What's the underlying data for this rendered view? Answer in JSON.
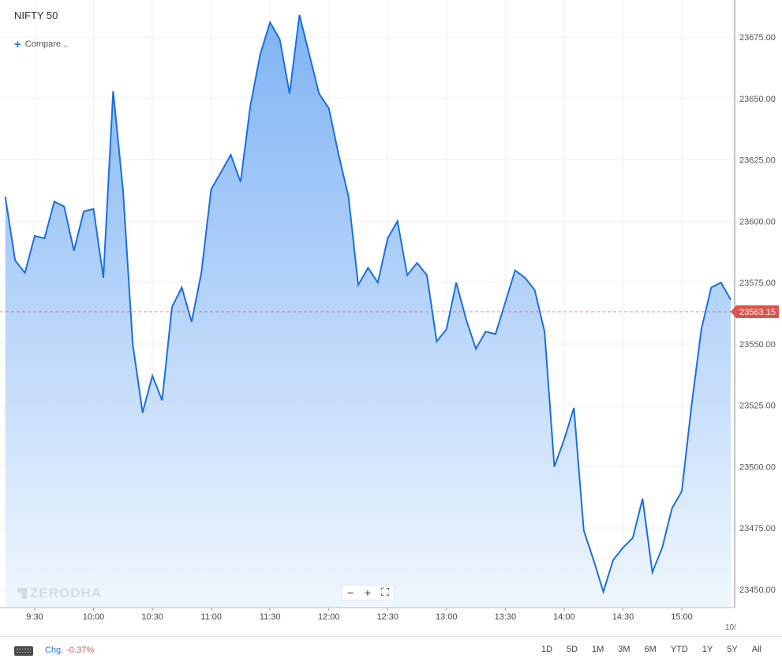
{
  "header": {
    "title": "NIFTY 50",
    "compare_label": "Compare..."
  },
  "watermark": "ZERODHA",
  "zoom": {
    "minus": "−",
    "plus": "+",
    "fullscreen": "⛶"
  },
  "footer": {
    "chg_label": "Chg.",
    "chg_value": "-0.37%",
    "ranges": [
      "1D",
      "5D",
      "1M",
      "3M",
      "6M",
      "YTD",
      "1Y",
      "5Y",
      "All"
    ]
  },
  "colors": {
    "line": "#1a6fe0",
    "fill_top": "#7fb3f5",
    "fill_bottom": "#f0f7fe",
    "current_badge": "#e0524b"
  },
  "chart_data": {
    "type": "area",
    "title": "NIFTY 50",
    "xlabel": "",
    "ylabel": "",
    "xlim": [
      "09:15",
      "15:30"
    ],
    "ylim": [
      23440,
      23690
    ],
    "y_ticks": [
      23450,
      23475,
      23500,
      23525,
      23550,
      23575,
      23600,
      23625,
      23650,
      23675
    ],
    "y_tick_labels": [
      "23450.00",
      "23475.00",
      "23500.00",
      "23525.00",
      "23550.00",
      "23575.00",
      "23600.00",
      "23625.00",
      "23650.00",
      "23675.00"
    ],
    "x_ticks": [
      "9:30",
      "10:00",
      "10:30",
      "11:00",
      "11:30",
      "12:00",
      "12:30",
      "13:00",
      "13:30",
      "14:00",
      "14:30",
      "15:00"
    ],
    "x_edge_label": "10/",
    "current_value": 23563.15,
    "current_label": "23563.15",
    "grid": true,
    "series": [
      {
        "x": [
          "09:15",
          "09:20",
          "09:25",
          "09:30",
          "09:35",
          "09:40",
          "09:45",
          "09:50",
          "09:55",
          "10:00",
          "10:05",
          "10:10",
          "10:15",
          "10:20",
          "10:25",
          "10:30",
          "10:35",
          "10:40",
          "10:45",
          "10:50",
          "10:55",
          "11:00",
          "11:05",
          "11:10",
          "11:15",
          "11:20",
          "11:25",
          "11:30",
          "11:35",
          "11:40",
          "11:45",
          "11:50",
          "11:55",
          "12:00",
          "12:05",
          "12:10",
          "12:15",
          "12:20",
          "12:25",
          "12:30",
          "12:35",
          "12:40",
          "12:45",
          "12:50",
          "12:55",
          "13:00",
          "13:05",
          "13:10",
          "13:15",
          "13:20",
          "13:25",
          "13:30",
          "13:35",
          "13:40",
          "13:45",
          "13:50",
          "13:55",
          "14:00",
          "14:05",
          "14:10",
          "14:15",
          "14:20",
          "14:25",
          "14:30",
          "14:35",
          "14:40",
          "14:45",
          "14:50",
          "14:55",
          "15:00",
          "15:05",
          "15:10",
          "15:15",
          "15:20",
          "15:25"
        ],
        "values": [
          23610,
          23584,
          23579,
          23594,
          23593,
          23608,
          23606,
          23588,
          23604,
          23605,
          23577,
          23653,
          23613,
          23550,
          23522,
          23537,
          23527,
          23565,
          23573,
          23559,
          23579,
          23613,
          23620,
          23627,
          23616,
          23647,
          23668,
          23681,
          23674,
          23652,
          23684,
          23668,
          23652,
          23646,
          23627,
          23610,
          23574,
          23581,
          23575,
          23593,
          23600,
          23578,
          23583,
          23578,
          23551,
          23556,
          23575,
          23560,
          23548,
          23555,
          23554,
          23567,
          23580,
          23577,
          23572,
          23555,
          23500,
          23511,
          23524,
          23474,
          23462,
          23449,
          23462,
          23467,
          23471,
          23487,
          23457,
          23467,
          23483,
          23490,
          23525,
          23556,
          23573,
          23575,
          23568
        ]
      }
    ]
  }
}
